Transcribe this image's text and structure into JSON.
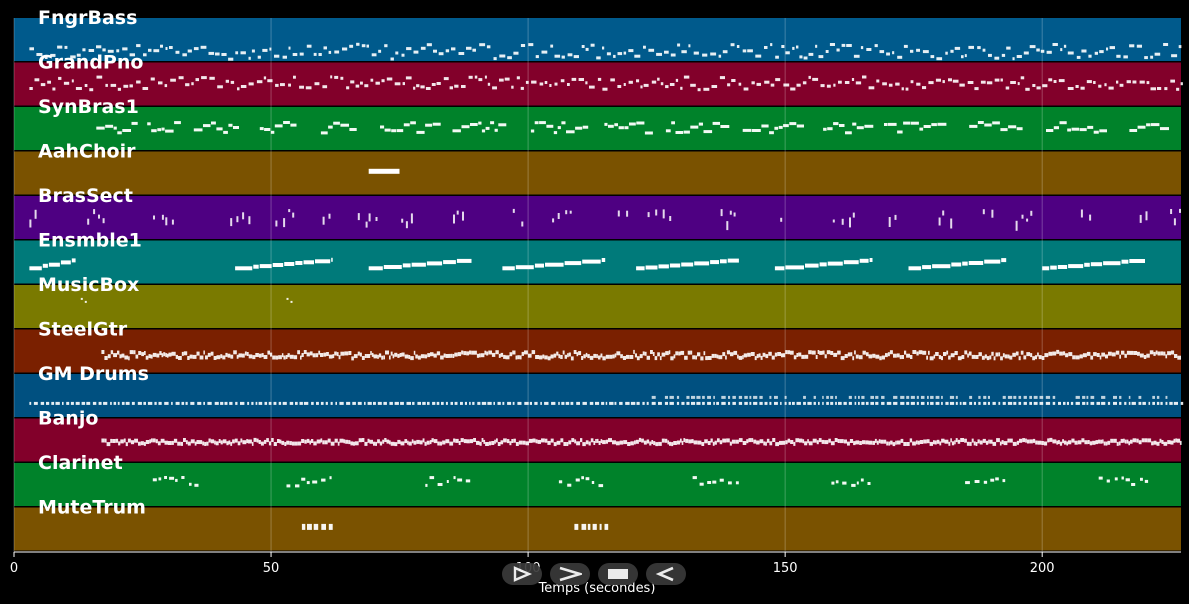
{
  "chart_data": {
    "type": "piano-roll",
    "title": "",
    "xlabel": "Temps (secondes)",
    "ylabel": "",
    "xlim": [
      0,
      227
    ],
    "x_ticks": [
      0,
      50,
      100,
      150,
      200
    ],
    "grid": true,
    "tracks": [
      {
        "name": "FngrBass",
        "color": "#005a8c",
        "start": 3,
        "end": 227,
        "pattern": "dense",
        "pitch": [
          0.75,
          0.35
        ]
      },
      {
        "name": "GrandPno",
        "color": "#82002a",
        "start": 3,
        "end": 227,
        "pattern": "dense",
        "pitch": [
          0.45,
          0.3
        ]
      },
      {
        "name": "SynBras1",
        "color": "#00822a",
        "start": 16,
        "end": 224,
        "pattern": "phrases",
        "pitch": [
          0.45,
          0.25
        ]
      },
      {
        "name": "AahChoir",
        "color": "#7a5200",
        "segments": [
          [
            69,
            75
          ]
        ],
        "pitch": [
          0.45,
          0.0
        ]
      },
      {
        "name": "BrasSect",
        "color": "#4e0082",
        "start": 3,
        "end": 227,
        "pattern": "sparse",
        "pitch": [
          0.45,
          0.3
        ]
      },
      {
        "name": "Ensmble1",
        "color": "#007a7a",
        "segments": [
          [
            3,
            12
          ],
          [
            43,
            62
          ],
          [
            69,
            89
          ],
          [
            95,
            115
          ],
          [
            121,
            141
          ],
          [
            148,
            167
          ],
          [
            174,
            193
          ],
          [
            200,
            220
          ]
        ],
        "pitch": [
          0.5,
          0.2
        ]
      },
      {
        "name": "MusicBox",
        "color": "#7a7a00",
        "segments": [
          [
            13,
            15
          ],
          [
            53,
            55
          ]
        ],
        "pitch": [
          0.3,
          0.0
        ]
      },
      {
        "name": "SteelGtr",
        "color": "#7a2000",
        "start": 17,
        "end": 227,
        "pattern": "solid",
        "pitch": [
          0.55,
          0.15
        ]
      },
      {
        "name": "GM Drums",
        "color": "#005080",
        "start": 3,
        "end": 227,
        "pattern": "drums",
        "pitch": [
          0.65,
          0.1
        ]
      },
      {
        "name": "Banjo",
        "color": "#82002a",
        "start": 17,
        "end": 227,
        "pattern": "solid",
        "pitch": [
          0.5,
          0.1
        ]
      },
      {
        "name": "Clarinet",
        "color": "#00822a",
        "segments": [
          [
            27,
            36
          ],
          [
            53,
            62
          ],
          [
            80,
            88
          ],
          [
            106,
            114
          ],
          [
            132,
            141
          ],
          [
            159,
            167
          ],
          [
            185,
            193
          ],
          [
            211,
            220
          ]
        ],
        "pitch": [
          0.4,
          0.2
        ]
      },
      {
        "name": "MuteTrum",
        "color": "#7a5200",
        "segments": [
          [
            56,
            62
          ],
          [
            109,
            115
          ]
        ],
        "pitch": [
          0.45,
          0.0
        ]
      }
    ]
  },
  "controls": {
    "buttons": [
      {
        "name": "play-button",
        "icon": "play-icon"
      },
      {
        "name": "forward-button",
        "icon": "chevron-right-icon"
      },
      {
        "name": "stop-button",
        "icon": "stop-icon"
      },
      {
        "name": "back-button",
        "icon": "chevron-left-icon"
      }
    ]
  }
}
